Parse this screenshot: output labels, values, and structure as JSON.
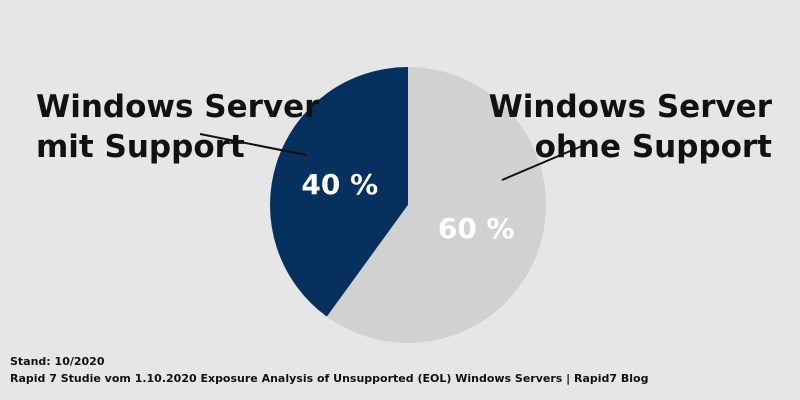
{
  "chart_data": {
    "type": "pie",
    "slices": [
      {
        "label_lines": [
          "Windows Server",
          "mit Support"
        ],
        "value": 40,
        "value_label": "40 %",
        "color": "#06305e"
      },
      {
        "label_lines": [
          "Windows Server",
          "ohne Support"
        ],
        "value": 60,
        "value_label": "60 %",
        "color": "#d1d1d1"
      }
    ],
    "value_label_color": "#ffffff"
  },
  "footer": {
    "stand": "Stand: 10/2020",
    "source": "Rapid 7 Studie vom 1.10.2020 Exposure Analysis of Unsupported (EOL) Windows Servers | Rapid7 Blog"
  },
  "colors": {
    "background": "#e6e6e6",
    "text": "#111111"
  }
}
